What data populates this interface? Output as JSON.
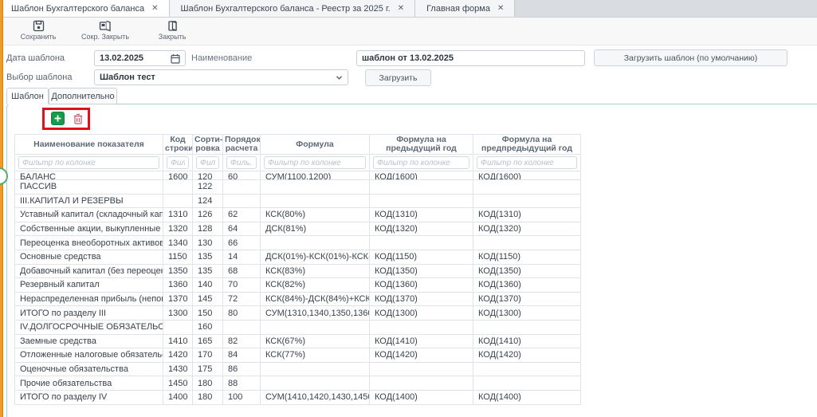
{
  "tabbar": {
    "tabs": [
      {
        "label": "Шаблон Бухгалтерского баланса",
        "close": "✕",
        "active": true
      },
      {
        "label": "Шаблон Бухгалтерского баланса - Реестр за 2025 г.",
        "close": "✕",
        "active": false
      },
      {
        "label": "Главная форма",
        "close": "✕",
        "active": false
      }
    ]
  },
  "toolbar": {
    "save_label": "Сохранить",
    "save_close_label": "Сокр. Закрыть",
    "close_label": "Закрыть"
  },
  "form": {
    "date_label": "Дата шаблона",
    "date_value": "13.02.2025",
    "name_label": "Наименование",
    "name_value": "шаблон от 13.02.2025",
    "load_default_button": "Загрузить шаблон (по умолчанию)",
    "select_label": "Выбор шаблона",
    "select_value": "Шаблон тест",
    "load_button": "Загрузить"
  },
  "subtabs": {
    "template": "Шаблон",
    "additional": "Дополнительно"
  },
  "table": {
    "columns": [
      "Наименование показателя",
      "Код строки",
      "Сорти-ровка",
      "Порядок расчета",
      "Формула",
      "Формула на предыдущий год",
      "Формула на предпредыдущий год"
    ],
    "filters": [
      "Фильтр по колонке",
      "Фил...",
      "Фил...",
      "Филь...",
      "Фильтр по колонке",
      "Фильтр по колонке",
      "Фильтр по колонке"
    ],
    "partial_top_row": [
      "БАЛАНС",
      "1600",
      "120",
      "60",
      "СУМ(1100,1200)",
      "КОД(1600)",
      "КОД(1600)"
    ],
    "rows": [
      [
        "ПАССИВ",
        "",
        "122",
        "",
        "",
        "",
        ""
      ],
      [
        "III.КАПИТАЛ И РЕЗЕРВЫ",
        "",
        "124",
        "",
        "",
        "",
        ""
      ],
      [
        "Уставный капитал (складочный капита...",
        "1310",
        "126",
        "62",
        "КСК(80%)",
        "КОД(1310)",
        "КОД(1310)"
      ],
      [
        "Собственные акции, выкупленные у ак...",
        "1320",
        "128",
        "64",
        "ДСК(81%)",
        "КОД(1320)",
        "КОД(1320)"
      ],
      [
        "Переоценка внеоборотных активов",
        "1340",
        "130",
        "66",
        "",
        "",
        ""
      ],
      [
        "Основные средства",
        "1150",
        "135",
        "14",
        "ДСК(01%)-КСК(01%)-КСК(02...",
        "КОД(1150)",
        "КОД(1150)"
      ],
      [
        "Добавочный капитал (без переоценки)",
        "1350",
        "135",
        "68",
        "КСК(83%)",
        "КОД(1350)",
        "КОД(1350)"
      ],
      [
        "Резервный капитал",
        "1360",
        "140",
        "70",
        "КСК(82%)",
        "КОД(1360)",
        "КОД(1360)"
      ],
      [
        "Нераспределенная прибыль (непокрыт...",
        "1370",
        "145",
        "72",
        "КСК(84%)-ДСК(84%)+КСК(99...",
        "КОД(1370)",
        "КОД(1370)"
      ],
      [
        "ИТОГО по разделу III",
        "1300",
        "150",
        "80",
        "СУМ(1310,1340,1350,1360,1...",
        "КОД(1300)",
        "КОД(1300)"
      ],
      [
        "IV.ДОЛГОСРОЧНЫЕ ОБЯЗАТЕЛЬСТВА",
        "",
        "160",
        "",
        "",
        "",
        ""
      ],
      [
        "Заемные средства",
        "1410",
        "165",
        "82",
        "КСК(67%)",
        "КОД(1410)",
        "КОД(1410)"
      ],
      [
        "Отложенные налоговые обязательства",
        "1420",
        "170",
        "84",
        "КСК(77%)",
        "КОД(1420)",
        "КОД(1420)"
      ],
      [
        "Оценочные обязательства",
        "1430",
        "175",
        "86",
        "",
        "",
        ""
      ],
      [
        "Прочие обязательства",
        "1450",
        "180",
        "88",
        "",
        "",
        ""
      ],
      [
        "ИТОГО по разделу IV",
        "1400",
        "180",
        "100",
        "СУМ(1410,1420,1430,1450)",
        "КОД(1400)",
        "КОД(1400)"
      ]
    ]
  },
  "colors": {
    "accent_orange": "#ee9b27",
    "panel_border_green": "#abd2bc",
    "add_button_green": "#189a4d",
    "delete_icon_rose": "#cc5568",
    "annotation_red": "#e0101e",
    "tabbar_bg": "#d9dce1",
    "grid_border": "#dfe3ea"
  }
}
